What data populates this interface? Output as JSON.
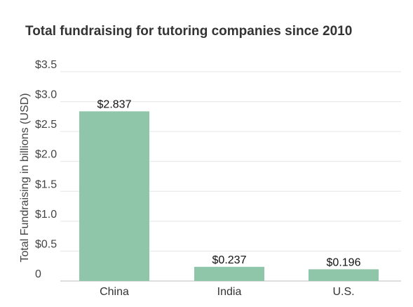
{
  "chart_data": {
    "type": "bar",
    "title": "Total fundraising for tutoring companies since 2010",
    "ylabel": "Total Fundraising in billions (USD)",
    "xlabel": "",
    "categories": [
      "China",
      "India",
      "U.S."
    ],
    "values": [
      2.837,
      0.237,
      0.196
    ],
    "data_labels": [
      "$2.837",
      "$0.237",
      "$0.196"
    ],
    "ylim": [
      0,
      3.5
    ],
    "yticks": [
      0,
      0.5,
      1.0,
      1.5,
      2.0,
      2.5,
      3.0,
      3.5
    ],
    "ytick_labels": [
      "0",
      "$0.5",
      "$1.0",
      "$1.5",
      "$2.0",
      "$2.5",
      "$3.0",
      "$3.5"
    ],
    "grid": true,
    "legend": "none",
    "colors": {
      "bar": "#8fc5a8",
      "grid": "#e6e6e6"
    }
  }
}
